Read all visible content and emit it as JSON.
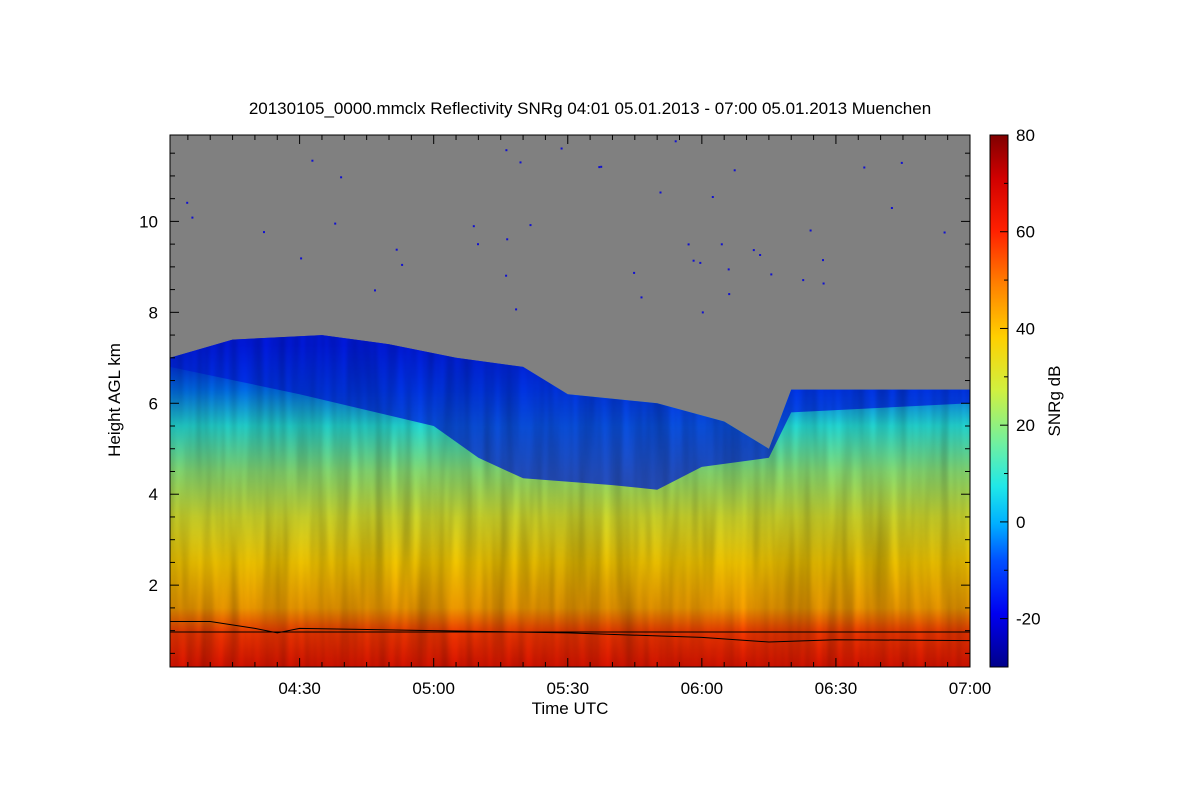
{
  "chart_data": {
    "type": "heatmap",
    "title": "20130105_0000.mmclx Reflectivity SNRg   04:01 05.01.2013 - 07:00 05.01.2013 Muenchen",
    "xlabel": "Time UTC",
    "ylabel": "Height AGL km",
    "xlim": [
      "04:01",
      "07:00"
    ],
    "ylim": [
      0.2,
      11.9
    ],
    "xticks": [
      "04:30",
      "05:00",
      "05:30",
      "06:00",
      "06:30",
      "07:00"
    ],
    "yticks": [
      "2",
      "4",
      "6",
      "8",
      "10"
    ],
    "background_color": "#808080",
    "colorbar": {
      "label": "SNRg dB",
      "range": [
        -30,
        80
      ],
      "ticks": [
        "-20",
        "0",
        "20",
        "40",
        "60",
        "80"
      ]
    },
    "cloud_top_km": [
      {
        "t": "04:01",
        "h": 7.0
      },
      {
        "t": "04:15",
        "h": 7.4
      },
      {
        "t": "04:35",
        "h": 7.5
      },
      {
        "t": "04:50",
        "h": 7.3
      },
      {
        "t": "05:05",
        "h": 7.0
      },
      {
        "t": "05:20",
        "h": 6.8
      },
      {
        "t": "05:30",
        "h": 6.2
      },
      {
        "t": "05:50",
        "h": 6.0
      },
      {
        "t": "06:05",
        "h": 5.6
      },
      {
        "t": "06:15",
        "h": 5.0
      },
      {
        "t": "06:20",
        "h": 6.3
      },
      {
        "t": "06:45",
        "h": 6.3
      },
      {
        "t": "07:00",
        "h": 6.3
      }
    ],
    "echo_base_km": [
      {
        "t": "04:01",
        "h": 6.8
      },
      {
        "t": "04:30",
        "h": 6.2
      },
      {
        "t": "05:00",
        "h": 5.5
      },
      {
        "t": "05:10",
        "h": 4.8
      },
      {
        "t": "05:20",
        "h": 4.35
      },
      {
        "t": "05:40",
        "h": 4.2
      },
      {
        "t": "05:50",
        "h": 4.1
      },
      {
        "t": "06:00",
        "h": 4.6
      },
      {
        "t": "06:15",
        "h": 4.8
      },
      {
        "t": "06:20",
        "h": 5.8
      },
      {
        "t": "07:00",
        "h": 6.0
      }
    ],
    "reference_line_km": 0.97,
    "melting_layer_km": [
      {
        "t": "04:01",
        "h": 1.2
      },
      {
        "t": "04:10",
        "h": 1.2
      },
      {
        "t": "04:20",
        "h": 1.05
      },
      {
        "t": "04:25",
        "h": 0.95
      },
      {
        "t": "04:30",
        "h": 1.05
      },
      {
        "t": "05:00",
        "h": 1.0
      },
      {
        "t": "05:30",
        "h": 0.95
      },
      {
        "t": "06:00",
        "h": 0.85
      },
      {
        "t": "06:15",
        "h": 0.75
      },
      {
        "t": "06:30",
        "h": 0.8
      },
      {
        "t": "07:00",
        "h": 0.78
      }
    ],
    "layers_snr_db": [
      {
        "h_km": 0.2,
        "snr": 64
      },
      {
        "h_km": 0.95,
        "snr": 57
      },
      {
        "h_km": 1.5,
        "snr": 44
      },
      {
        "h_km": 2.5,
        "snr": 38
      },
      {
        "h_km": 3.5,
        "snr": 30
      },
      {
        "h_km": 4.5,
        "snr": 20
      },
      {
        "h_km": 5.5,
        "snr": 8
      },
      {
        "h_km": 6.3,
        "snr": -5
      },
      {
        "h_km": 7.3,
        "snr": -20
      }
    ]
  }
}
